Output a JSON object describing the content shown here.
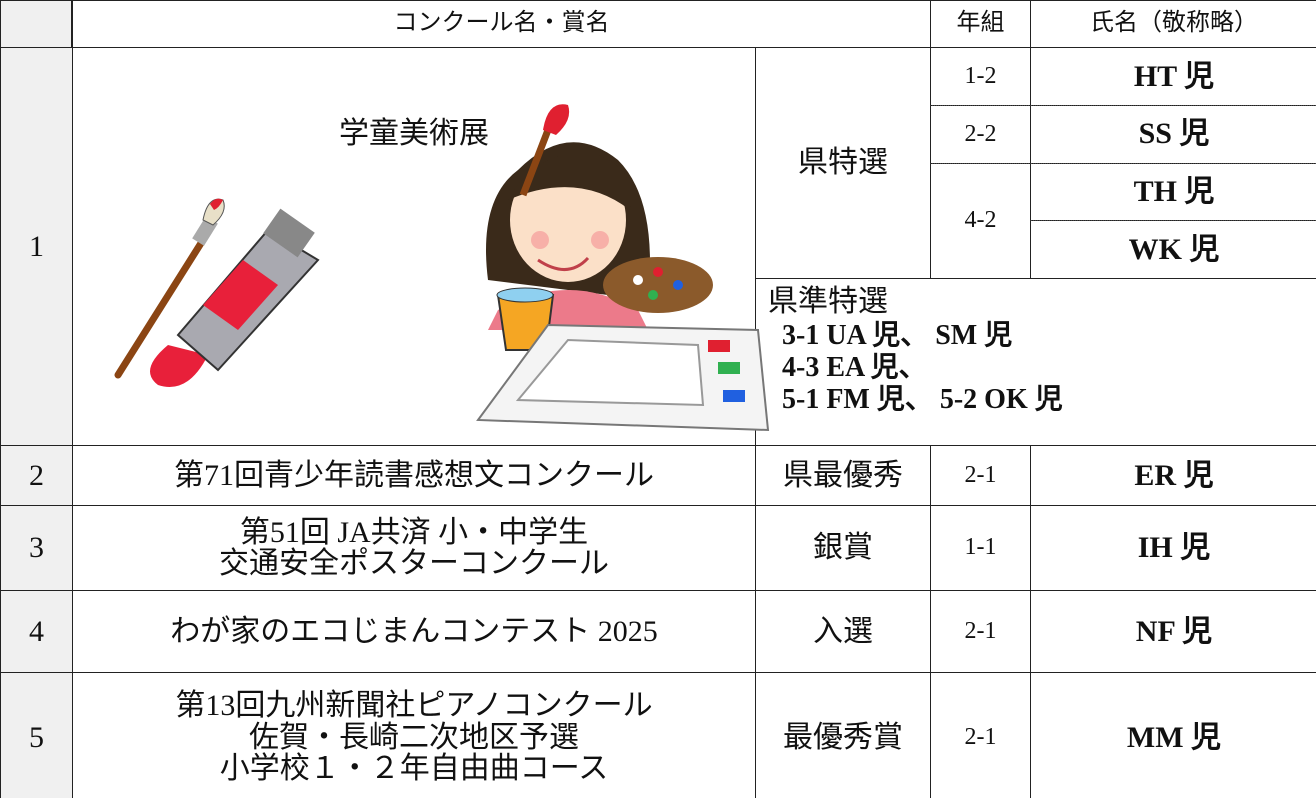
{
  "header": {
    "contest": "コンクール名・賞名",
    "grade": "年組",
    "name": "氏名（敬称略）"
  },
  "rows": [
    {
      "number": "1",
      "contest": [
        "学童美術展"
      ],
      "award": "県特選",
      "entries": [
        {
          "grade": "1-2",
          "names": [
            "HT 児"
          ]
        },
        {
          "grade": "2-2",
          "names": [
            "SS 児"
          ]
        },
        {
          "grade": "4-2",
          "names": [
            "TH 児",
            "WK 児"
          ]
        }
      ],
      "sub_award": {
        "title": "県準特選",
        "lines": [
          "3-1 UA 児、 SM 児",
          "4-3 EA 児、",
          "5-1 FM 児、 5-2 OK 児"
        ]
      }
    },
    {
      "number": "2",
      "contest": [
        "第71回青少年読書感想文コンクール"
      ],
      "award": "県最優秀",
      "entries": [
        {
          "grade": "2-1",
          "names": [
            "ER 児"
          ]
        }
      ]
    },
    {
      "number": "3",
      "contest": [
        "第51回 JA共済 小・中学生",
        "交通安全ポスターコンクール"
      ],
      "award": "銀賞",
      "entries": [
        {
          "grade": "1-1",
          "names": [
            "IH 児"
          ]
        }
      ]
    },
    {
      "number": "4",
      "contest": [
        "わが家のエコじまんコンテスト 2025"
      ],
      "award": "入選",
      "entries": [
        {
          "grade": "2-1",
          "names": [
            "NF 児"
          ]
        }
      ]
    },
    {
      "number": "5",
      "contest": [
        "第13回九州新聞社ピアノコンクール",
        "佐賀・長崎二次地区予選",
        "小学校１・２年自由曲コース"
      ],
      "award": "最優秀賞",
      "entries": [
        {
          "grade": "2-1",
          "names": [
            "MM 児"
          ]
        }
      ]
    }
  ]
}
